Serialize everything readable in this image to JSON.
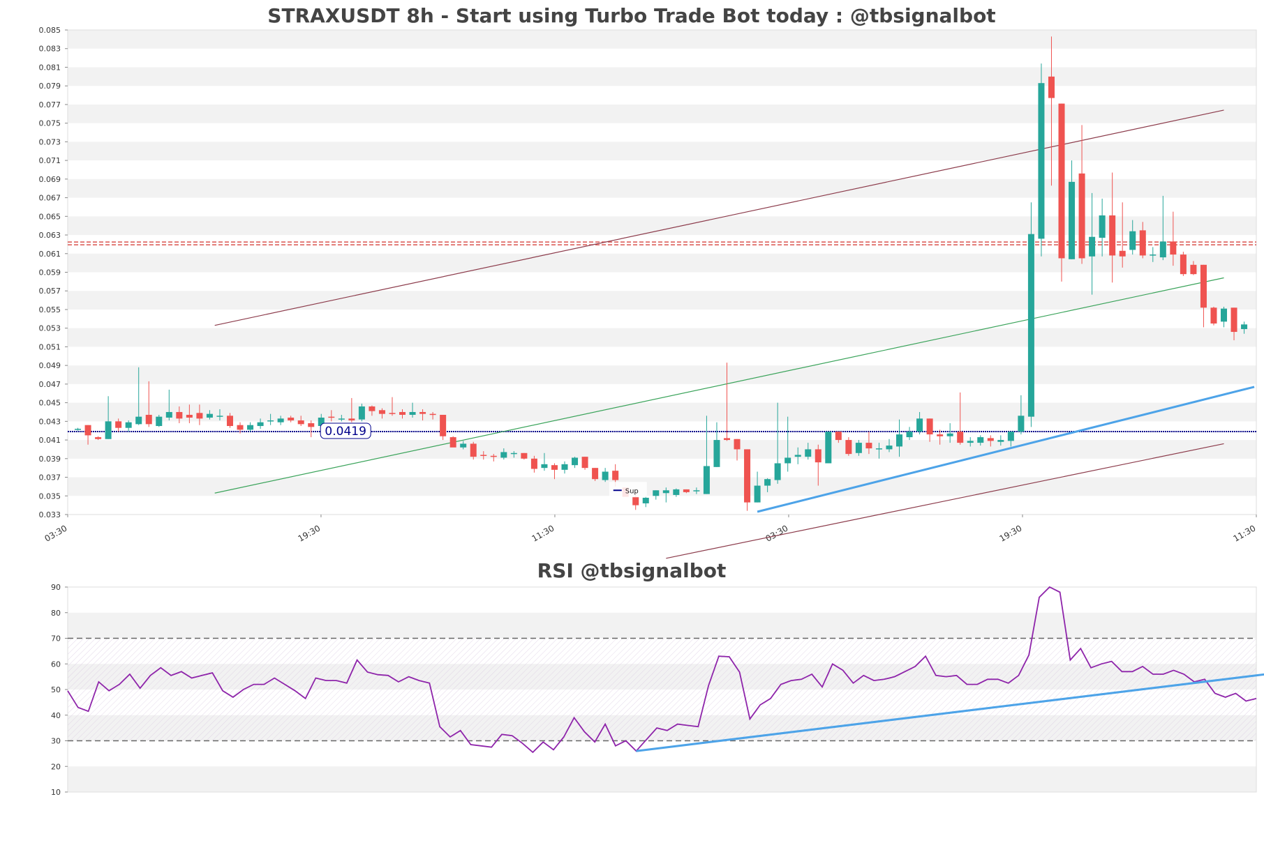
{
  "chart_data": [
    {
      "type": "candlestick",
      "title": "STRAXUSDT 8h - Start using Turbo Trade Bot today : @tbsignalbot",
      "ylim": [
        0.033,
        0.085
      ],
      "y_ticks": [
        "0.033",
        "0.035",
        "0.037",
        "0.039",
        "0.041",
        "0.043",
        "0.045",
        "0.047",
        "0.049",
        "0.051",
        "0.053",
        "0.055",
        "0.057",
        "0.059",
        "0.061",
        "0.063",
        "0.065",
        "0.067",
        "0.069",
        "0.071",
        "0.073",
        "0.075",
        "0.077",
        "0.079",
        "0.081",
        "0.083",
        "0.085"
      ],
      "x_ticks": [
        "03:30",
        "19:30",
        "11:30",
        "03:30",
        "19:30",
        "11:30"
      ],
      "grid": "horizontal bands",
      "support_level": 0.0419,
      "support_label": "0.0419",
      "legend": [
        {
          "name": "Sup",
          "color": "#00008b"
        }
      ],
      "resistance_level": 0.0621,
      "candles_ohlc": [
        [
          0.0421,
          0.0423,
          0.042,
          0.0422
        ],
        [
          0.0426,
          0.0426,
          0.0405,
          0.0415
        ],
        [
          0.0413,
          0.0414,
          0.041,
          0.0411
        ],
        [
          0.0411,
          0.0457,
          0.0411,
          0.043
        ],
        [
          0.043,
          0.0433,
          0.0419,
          0.0423
        ],
        [
          0.0423,
          0.0431,
          0.0419,
          0.0429
        ],
        [
          0.0427,
          0.0488,
          0.0426,
          0.0435
        ],
        [
          0.0437,
          0.0473,
          0.0424,
          0.0427
        ],
        [
          0.0425,
          0.0437,
          0.0424,
          0.0435
        ],
        [
          0.0434,
          0.0464,
          0.0431,
          0.044
        ],
        [
          0.044,
          0.0446,
          0.0428,
          0.0433
        ],
        [
          0.0437,
          0.0448,
          0.0428,
          0.0434
        ],
        [
          0.0439,
          0.0448,
          0.0426,
          0.0433
        ],
        [
          0.0434,
          0.0442,
          0.0432,
          0.0438
        ],
        [
          0.0436,
          0.0443,
          0.0431,
          0.0436
        ],
        [
          0.0436,
          0.0439,
          0.0423,
          0.0425
        ],
        [
          0.0426,
          0.0429,
          0.0417,
          0.0421
        ],
        [
          0.0421,
          0.0429,
          0.0419,
          0.0426
        ],
        [
          0.0425,
          0.0433,
          0.0422,
          0.0429
        ],
        [
          0.043,
          0.0438,
          0.0426,
          0.0431
        ],
        [
          0.0429,
          0.0436,
          0.0426,
          0.0433
        ],
        [
          0.0434,
          0.0436,
          0.0429,
          0.0431
        ],
        [
          0.0431,
          0.0436,
          0.0425,
          0.0427
        ],
        [
          0.0428,
          0.0431,
          0.0413,
          0.0424
        ],
        [
          0.0425,
          0.0438,
          0.0422,
          0.0434
        ],
        [
          0.0435,
          0.0442,
          0.043,
          0.0434
        ],
        [
          0.0433,
          0.0437,
          0.043,
          0.0433
        ],
        [
          0.0433,
          0.0455,
          0.0429,
          0.0431
        ],
        [
          0.0432,
          0.0449,
          0.043,
          0.0446
        ],
        [
          0.0446,
          0.0447,
          0.0436,
          0.0441
        ],
        [
          0.0442,
          0.0444,
          0.0433,
          0.0438
        ],
        [
          0.0439,
          0.0456,
          0.0436,
          0.0438
        ],
        [
          0.044,
          0.0443,
          0.0433,
          0.0437
        ],
        [
          0.0437,
          0.045,
          0.0434,
          0.044
        ],
        [
          0.044,
          0.0443,
          0.0431,
          0.0438
        ],
        [
          0.0438,
          0.044,
          0.0432,
          0.0437
        ],
        [
          0.0437,
          0.0437,
          0.041,
          0.0414
        ],
        [
          0.0413,
          0.0414,
          0.0403,
          0.0402
        ],
        [
          0.0402,
          0.0409,
          0.04,
          0.0406
        ],
        [
          0.0406,
          0.0408,
          0.0389,
          0.0392
        ],
        [
          0.0394,
          0.0398,
          0.0389,
          0.0393
        ],
        [
          0.0393,
          0.0395,
          0.0387,
          0.0392
        ],
        [
          0.0391,
          0.0401,
          0.0389,
          0.0397
        ],
        [
          0.0396,
          0.0398,
          0.0391,
          0.0396
        ],
        [
          0.0396,
          0.0396,
          0.0389,
          0.039
        ],
        [
          0.039,
          0.0393,
          0.0375,
          0.0379
        ],
        [
          0.038,
          0.0396,
          0.0377,
          0.0384
        ],
        [
          0.0383,
          0.0385,
          0.0368,
          0.0378
        ],
        [
          0.0378,
          0.0387,
          0.0374,
          0.0384
        ],
        [
          0.0383,
          0.0392,
          0.038,
          0.0391
        ],
        [
          0.0392,
          0.0392,
          0.0378,
          0.038
        ],
        [
          0.038,
          0.038,
          0.0366,
          0.0368
        ],
        [
          0.0367,
          0.038,
          0.0365,
          0.0376
        ],
        [
          0.0377,
          0.0384,
          0.036,
          0.0367
        ],
        [
          0.0359,
          0.0359,
          0.0351,
          0.0349
        ],
        [
          0.0349,
          0.0353,
          0.0335,
          0.034
        ],
        [
          0.0342,
          0.035,
          0.0338,
          0.0348
        ],
        [
          0.035,
          0.0356,
          0.0346,
          0.0356
        ],
        [
          0.0353,
          0.0359,
          0.0343,
          0.0356
        ],
        [
          0.0351,
          0.0358,
          0.0349,
          0.0357
        ],
        [
          0.0357,
          0.0357,
          0.0353,
          0.0354
        ],
        [
          0.0355,
          0.0359,
          0.0352,
          0.0356
        ],
        [
          0.0352,
          0.0436,
          0.0352,
          0.0382
        ],
        [
          0.0381,
          0.0429,
          0.0381,
          0.041
        ],
        [
          0.0412,
          0.0493,
          0.0409,
          0.041
        ],
        [
          0.0411,
          0.0411,
          0.0388,
          0.04
        ],
        [
          0.04,
          0.04,
          0.0334,
          0.0343
        ],
        [
          0.0343,
          0.0376,
          0.0343,
          0.0361
        ],
        [
          0.0361,
          0.0369,
          0.0354,
          0.0368
        ],
        [
          0.0367,
          0.045,
          0.0363,
          0.0385
        ],
        [
          0.0385,
          0.0435,
          0.0376,
          0.0391
        ],
        [
          0.0392,
          0.0402,
          0.0384,
          0.0394
        ],
        [
          0.0392,
          0.0407,
          0.0389,
          0.04
        ],
        [
          0.04,
          0.0405,
          0.0361,
          0.0386
        ],
        [
          0.0385,
          0.0418,
          0.0385,
          0.0419
        ],
        [
          0.0419,
          0.0419,
          0.0407,
          0.041
        ],
        [
          0.041,
          0.0413,
          0.0393,
          0.0395
        ],
        [
          0.0396,
          0.041,
          0.0393,
          0.0407
        ],
        [
          0.0407,
          0.0419,
          0.0395,
          0.0401
        ],
        [
          0.04,
          0.0407,
          0.039,
          0.0401
        ],
        [
          0.04,
          0.0411,
          0.0397,
          0.0404
        ],
        [
          0.0403,
          0.0432,
          0.0392,
          0.0416
        ],
        [
          0.0413,
          0.0424,
          0.041,
          0.0419
        ],
        [
          0.0419,
          0.044,
          0.0416,
          0.0433
        ],
        [
          0.0433,
          0.0433,
          0.0408,
          0.0416
        ],
        [
          0.0416,
          0.0421,
          0.0405,
          0.0414
        ],
        [
          0.0414,
          0.0428,
          0.0407,
          0.0417
        ],
        [
          0.0419,
          0.0461,
          0.0405,
          0.0407
        ],
        [
          0.0407,
          0.0413,
          0.0403,
          0.0409
        ],
        [
          0.0407,
          0.0415,
          0.0404,
          0.0413
        ],
        [
          0.0412,
          0.0415,
          0.0403,
          0.0409
        ],
        [
          0.0408,
          0.0415,
          0.0404,
          0.041
        ],
        [
          0.0409,
          0.0418,
          0.0403,
          0.0419
        ],
        [
          0.0419,
          0.0458,
          0.0416,
          0.0436
        ],
        [
          0.0435,
          0.0665,
          0.0424,
          0.0631
        ],
        [
          0.0626,
          0.0814,
          0.0607,
          0.0793
        ],
        [
          0.08,
          0.0843,
          0.0683,
          0.0777
        ],
        [
          0.0771,
          0.0771,
          0.058,
          0.0605
        ],
        [
          0.0604,
          0.071,
          0.0604,
          0.0687
        ],
        [
          0.0696,
          0.0748,
          0.0599,
          0.0605
        ],
        [
          0.0607,
          0.0675,
          0.0566,
          0.0628
        ],
        [
          0.0627,
          0.0669,
          0.0607,
          0.0651
        ],
        [
          0.0651,
          0.0697,
          0.0579,
          0.0608
        ],
        [
          0.0613,
          0.0665,
          0.0595,
          0.0607
        ],
        [
          0.0614,
          0.0646,
          0.0609,
          0.0634
        ],
        [
          0.0635,
          0.0644,
          0.0605,
          0.0608
        ],
        [
          0.0609,
          0.0617,
          0.0601,
          0.0609
        ],
        [
          0.0606,
          0.0672,
          0.0603,
          0.0623
        ],
        [
          0.0623,
          0.0655,
          0.0597,
          0.0609
        ],
        [
          0.0609,
          0.0612,
          0.0586,
          0.0588
        ],
        [
          0.0598,
          0.0602,
          0.0587,
          0.0588
        ],
        [
          0.0598,
          0.0598,
          0.0531,
          0.0552
        ],
        [
          0.0552,
          0.0553,
          0.0533,
          0.0535
        ],
        [
          0.0537,
          0.0553,
          0.0531,
          0.0551
        ],
        [
          0.0552,
          0.0552,
          0.0517,
          0.0526
        ],
        [
          0.0529,
          0.0537,
          0.0524,
          0.0534
        ]
      ],
      "trend_lines": [
        {
          "color": "#8b3a4a",
          "x1": 13.5,
          "y1": 0.0533,
          "x2": 113,
          "y2": 0.0764
        },
        {
          "color": "#8b3a4a",
          "x1": 58,
          "y1": 0.0283,
          "x2": 113,
          "y2": 0.0406
        },
        {
          "color": "#3aa35a",
          "x1": 13.5,
          "y1": 0.0353,
          "x2": 113,
          "y2": 0.0584
        },
        {
          "color": "#4da3e8",
          "x1": 67,
          "y1": 0.0333,
          "x2": 116,
          "y2": 0.0467
        }
      ]
    },
    {
      "type": "line",
      "title": "RSI @tbsignalbot",
      "ylim": [
        10,
        90
      ],
      "y_ticks": [
        "10",
        "20",
        "30",
        "40",
        "50",
        "60",
        "70",
        "80",
        "90"
      ],
      "overbought": 70,
      "oversold": 30,
      "series": [
        {
          "values": [
            49.5,
            43,
            41.5,
            53,
            49.5,
            52,
            56,
            50.5,
            55.5,
            58.5,
            55.5,
            57,
            54.5,
            55.5,
            56.5,
            49.5,
            47,
            50,
            52,
            52,
            54.5,
            52,
            49.5,
            46.5,
            54.5,
            53.5,
            53.5,
            52.5,
            61.5,
            56.8,
            55.8,
            55.5,
            53,
            55,
            53.5,
            52.5,
            35.5,
            31.5,
            34,
            28.5,
            28,
            27.5,
            32.5,
            32,
            29,
            25.5,
            29.5,
            26.5,
            31.5,
            39,
            33.5,
            29.5,
            36.5,
            28,
            30,
            26,
            30.5,
            35,
            34,
            36.5,
            36,
            35.5,
            51.5,
            63,
            62.8,
            56.8,
            38.5,
            44,
            46.5,
            52,
            53.5,
            54,
            56,
            51,
            60,
            57.5,
            52.5,
            55.5,
            53.5,
            54,
            55,
            57,
            59,
            63,
            55.5,
            55,
            55.5,
            52,
            52,
            54,
            54,
            52.5,
            55.5,
            63.5,
            86,
            91,
            88,
            61.5,
            66,
            58.5,
            60,
            61,
            57,
            57,
            59,
            56,
            56,
            57.5,
            56,
            53,
            54,
            48.5,
            47,
            48.5,
            45.5,
            46.5
          ]
        }
      ],
      "trend_lines": [
        {
          "color": "#4da3e8",
          "x1": 55,
          "y1": 26,
          "x2": 116,
          "y2": 56
        }
      ]
    }
  ]
}
